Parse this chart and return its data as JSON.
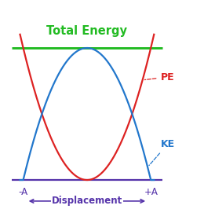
{
  "title": "Total Energy",
  "title_color": "#22bb22",
  "title_fontsize": 10.5,
  "pe_color": "#dd2222",
  "ke_color": "#2277cc",
  "axis_color": "#5533aa",
  "label_pe": "PE",
  "label_ke": "KE",
  "label_neg_a": "-A",
  "label_pos_a": "+A",
  "label_displacement": "Displacement",
  "total_energy": 1.0,
  "x_range": [
    -1.3,
    1.45
  ],
  "y_range": [
    -0.22,
    1.28
  ],
  "background_color": "#ffffff",
  "line_width": 1.6,
  "figsize": [
    2.6,
    2.8
  ],
  "dpi": 100
}
